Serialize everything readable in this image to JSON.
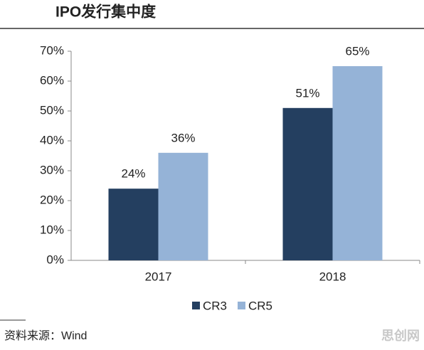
{
  "chart_data": {
    "type": "bar",
    "title": "IPO发行集中度",
    "categories": [
      "2017",
      "2018"
    ],
    "series": [
      {
        "name": "CR3",
        "color": "#243f60",
        "values": [
          24,
          51
        ],
        "value_labels": [
          "24%",
          "51%"
        ]
      },
      {
        "name": "CR5",
        "color": "#95b3d7",
        "values": [
          36,
          65
        ],
        "value_labels": [
          "36%",
          "65%"
        ]
      }
    ],
    "ylim": [
      0,
      70
    ],
    "yticks": [
      {
        "value": 0,
        "label": "0%"
      },
      {
        "value": 10,
        "label": "10%"
      },
      {
        "value": 20,
        "label": "20%"
      },
      {
        "value": 30,
        "label": "30%"
      },
      {
        "value": 40,
        "label": "40%"
      },
      {
        "value": 50,
        "label": "50%"
      },
      {
        "value": 60,
        "label": "60%"
      },
      {
        "value": 70,
        "label": "70%"
      }
    ],
    "grid": false,
    "legend": "bottom",
    "source": "资料来源：Wind",
    "watermark": "思创网"
  }
}
